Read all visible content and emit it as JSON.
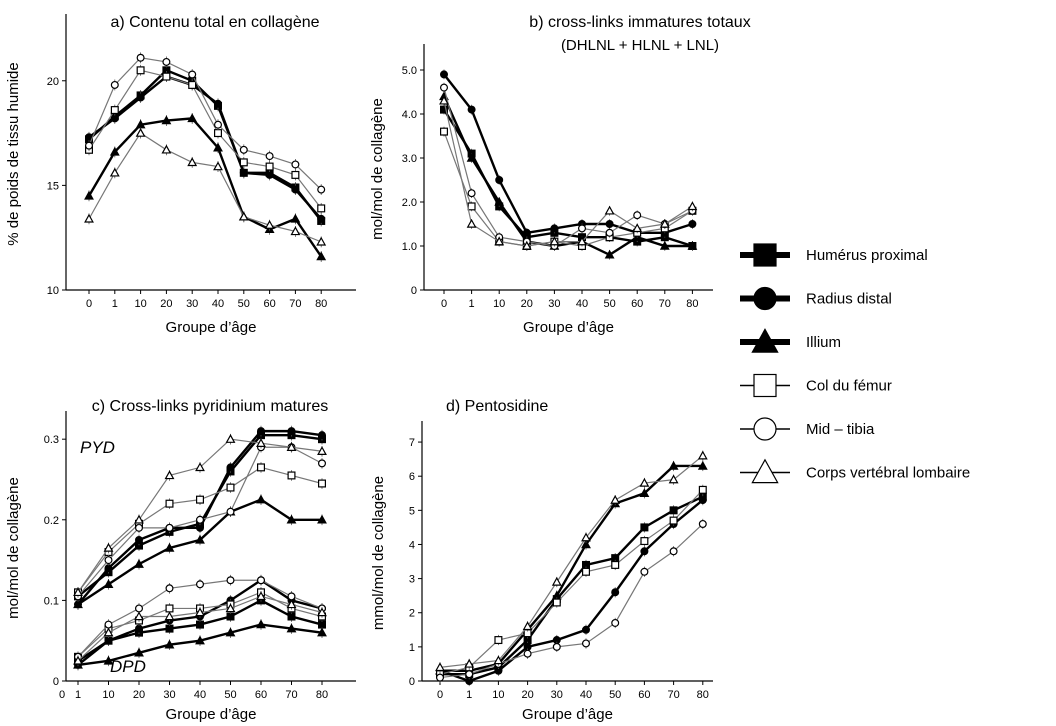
{
  "legend": [
    {
      "label": "Humérus proximal",
      "marker": "square",
      "fill": "#000000",
      "weight": "heavy"
    },
    {
      "label": "Radius distal",
      "marker": "circle",
      "fill": "#000000",
      "weight": "heavy"
    },
    {
      "label": "Illium",
      "marker": "triangle",
      "fill": "#000000",
      "weight": "heavy"
    },
    {
      "label": "Col du fémur",
      "marker": "square",
      "fill": "#ffffff",
      "weight": "light"
    },
    {
      "label": "Mid – tibia",
      "marker": "circle",
      "fill": "#ffffff",
      "weight": "light"
    },
    {
      "label": "Corps vertébral lombaire",
      "marker": "triangle",
      "fill": "#ffffff",
      "weight": "light"
    }
  ],
  "chart_data": [
    {
      "type": "line",
      "title": "a) Contenu total en collagène",
      "xlabel": "Groupe d’âge",
      "ylabel": "% de poids de tissu humide",
      "categories": [
        "0",
        "1",
        "10",
        "20",
        "30",
        "40",
        "50",
        "60",
        "70",
        "80"
      ],
      "ylim": [
        10,
        23
      ],
      "yticks": [
        "10",
        "15",
        "20"
      ],
      "grid": false,
      "series": [
        {
          "name": "Humérus proximal",
          "values": [
            17.2,
            18.3,
            19.3,
            20.5,
            20.0,
            18.8,
            15.6,
            15.6,
            14.9,
            13.3
          ]
        },
        {
          "name": "Radius distal",
          "values": [
            17.3,
            18.2,
            19.2,
            20.2,
            19.8,
            18.9,
            15.6,
            15.5,
            14.8,
            13.4
          ]
        },
        {
          "name": "Illium",
          "values": [
            14.5,
            16.6,
            17.9,
            18.1,
            18.2,
            16.8,
            13.5,
            12.9,
            13.4,
            11.6
          ]
        },
        {
          "name": "Col du fémur",
          "values": [
            16.7,
            18.6,
            20.5,
            20.2,
            19.8,
            17.5,
            16.1,
            15.9,
            15.5,
            13.9
          ]
        },
        {
          "name": "Mid – tibia",
          "values": [
            16.9,
            19.8,
            21.1,
            20.9,
            20.3,
            17.9,
            16.7,
            16.4,
            16.0,
            14.8
          ]
        },
        {
          "name": "Corps vertébral lombaire",
          "values": [
            13.4,
            15.6,
            17.5,
            16.7,
            16.1,
            15.9,
            13.5,
            13.1,
            12.8,
            12.3
          ]
        }
      ]
    },
    {
      "type": "line",
      "title": "b) cross-links immatures totaux",
      "subtitle": "(DHLNL  + HLNL  + LNL)",
      "xlabel": "Groupe d’âge",
      "ylabel": "mol/mol de collagène",
      "categories": [
        "0",
        "1",
        "10",
        "20",
        "30",
        "40",
        "50",
        "60",
        "70",
        "80"
      ],
      "ylim": [
        0,
        5.5
      ],
      "yticks": [
        "0",
        "1.0",
        "2.0",
        "3.0",
        "4.0",
        "5.0"
      ],
      "grid": false,
      "series": [
        {
          "name": "Humérus proximal",
          "values": [
            4.1,
            3.1,
            1.9,
            1.2,
            1.3,
            1.2,
            1.2,
            1.1,
            1.2,
            1.0
          ]
        },
        {
          "name": "Radius distal",
          "values": [
            4.9,
            4.1,
            2.5,
            1.3,
            1.4,
            1.5,
            1.5,
            1.3,
            1.3,
            1.5
          ]
        },
        {
          "name": "Illium",
          "values": [
            4.4,
            3.0,
            2.0,
            1.1,
            1.0,
            1.1,
            0.8,
            1.2,
            1.0,
            1.0
          ]
        },
        {
          "name": "Col du fémur",
          "values": [
            3.6,
            1.9,
            1.1,
            1.0,
            1.1,
            1.0,
            1.2,
            1.3,
            1.4,
            1.8
          ]
        },
        {
          "name": "Mid – tibia",
          "values": [
            4.6,
            2.2,
            1.2,
            1.1,
            1.0,
            1.4,
            1.3,
            1.7,
            1.5,
            1.8
          ]
        },
        {
          "name": "Corps vertébral lombaire",
          "values": [
            4.3,
            1.5,
            1.1,
            1.0,
            1.1,
            1.1,
            1.8,
            1.4,
            1.5,
            1.9
          ]
        }
      ]
    },
    {
      "type": "line",
      "title": "c) Cross-links pyridinium matures",
      "xlabel": "Groupe d’âge",
      "ylabel": "mol/mol de collagène",
      "categories": [
        "1",
        "10",
        "20",
        "30",
        "40",
        "50",
        "60",
        "70",
        "80"
      ],
      "ylim": [
        0,
        0.33
      ],
      "yticks": [
        "0",
        "0.1",
        "0.2",
        "0.3"
      ],
      "annotations": [
        "PYD",
        "DPD"
      ],
      "grid": false,
      "series_groups": [
        {
          "name": "PYD",
          "series": [
            {
              "name": "Humérus proximal",
              "values": [
                0.105,
                0.135,
                0.168,
                0.185,
                0.195,
                0.26,
                0.305,
                0.305,
                0.3
              ]
            },
            {
              "name": "Radius distal",
              "values": [
                0.095,
                0.14,
                0.175,
                0.19,
                0.19,
                0.265,
                0.31,
                0.31,
                0.305
              ]
            },
            {
              "name": "Illium",
              "values": [
                0.095,
                0.12,
                0.145,
                0.165,
                0.175,
                0.21,
                0.225,
                0.2,
                0.2
              ]
            },
            {
              "name": "Col du fémur",
              "values": [
                0.11,
                0.16,
                0.195,
                0.22,
                0.225,
                0.24,
                0.265,
                0.255,
                0.245
              ]
            },
            {
              "name": "Mid – tibia",
              "values": [
                0.105,
                0.15,
                0.19,
                0.19,
                0.2,
                0.21,
                0.29,
                0.29,
                0.27
              ]
            },
            {
              "name": "Corps vertébral lombaire",
              "values": [
                0.11,
                0.165,
                0.2,
                0.255,
                0.265,
                0.3,
                0.295,
                0.29,
                0.285
              ]
            }
          ]
        },
        {
          "name": "DPD",
          "series": [
            {
              "name": "Humérus proximal",
              "values": [
                0.025,
                0.05,
                0.06,
                0.065,
                0.07,
                0.08,
                0.1,
                0.08,
                0.07
              ]
            },
            {
              "name": "Radius distal",
              "values": [
                0.02,
                0.05,
                0.065,
                0.075,
                0.08,
                0.1,
                0.125,
                0.1,
                0.09
              ]
            },
            {
              "name": "Illium",
              "values": [
                0.02,
                0.025,
                0.035,
                0.045,
                0.05,
                0.06,
                0.07,
                0.065,
                0.06
              ]
            },
            {
              "name": "Col du fémur",
              "values": [
                0.03,
                0.065,
                0.075,
                0.09,
                0.09,
                0.095,
                0.11,
                0.09,
                0.08
              ]
            },
            {
              "name": "Mid – tibia",
              "values": [
                0.03,
                0.07,
                0.09,
                0.115,
                0.12,
                0.125,
                0.125,
                0.105,
                0.09
              ]
            },
            {
              "name": "Corps vertébral lombaire",
              "values": [
                0.025,
                0.06,
                0.08,
                0.08,
                0.085,
                0.09,
                0.105,
                0.095,
                0.085
              ]
            }
          ]
        }
      ]
    },
    {
      "type": "line",
      "title": "d) Pentosidine",
      "xlabel": "Groupe d’âge",
      "ylabel": "mmol/mol de collagène",
      "categories": [
        "0",
        "1",
        "10",
        "20",
        "30",
        "40",
        "50",
        "60",
        "70",
        "80"
      ],
      "ylim": [
        0,
        7.5
      ],
      "yticks": [
        "0",
        "1",
        "2",
        "3",
        "4",
        "5",
        "6",
        "7"
      ],
      "grid": false,
      "series": [
        {
          "name": "Humérus proximal",
          "values": [
            0.2,
            0.2,
            0.4,
            1.2,
            2.4,
            3.4,
            3.6,
            4.5,
            5.0,
            5.4
          ]
        },
        {
          "name": "Radius distal",
          "values": [
            0.3,
            0.0,
            0.3,
            1.0,
            1.2,
            1.5,
            2.6,
            3.8,
            4.6,
            5.3
          ]
        },
        {
          "name": "Illium",
          "values": [
            0.3,
            0.3,
            0.5,
            1.5,
            2.5,
            4.0,
            5.2,
            5.5,
            6.3,
            6.3
          ]
        },
        {
          "name": "Col du fémur",
          "values": [
            0.2,
            0.4,
            1.2,
            1.4,
            2.3,
            3.2,
            3.4,
            4.1,
            4.7,
            5.6
          ]
        },
        {
          "name": "Mid – tibia",
          "values": [
            0.1,
            0.2,
            0.5,
            0.8,
            1.0,
            1.1,
            1.7,
            3.2,
            3.8,
            4.6
          ]
        },
        {
          "name": "Corps vertébral lombaire",
          "values": [
            0.4,
            0.5,
            0.6,
            1.6,
            2.9,
            4.2,
            5.3,
            5.8,
            5.9,
            6.6
          ]
        }
      ]
    }
  ]
}
